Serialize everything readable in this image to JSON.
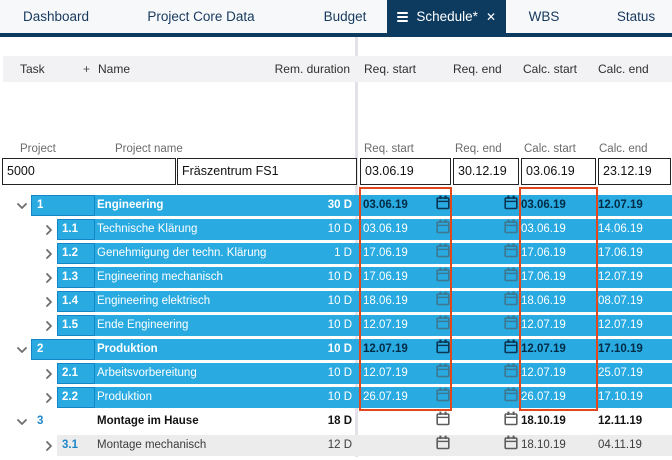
{
  "tabs": [
    {
      "label": "Dashboard",
      "active": false
    },
    {
      "label": "Project Core Data",
      "active": false
    },
    {
      "label": "Budget",
      "active": false
    },
    {
      "label": "Schedule*",
      "active": true
    },
    {
      "label": "WBS",
      "active": false
    },
    {
      "label": "Status",
      "active": false
    }
  ],
  "columns": {
    "task": "Task",
    "add": "+",
    "name": "Name",
    "rem_duration": "Rem. duration",
    "req_start": "Req. start",
    "req_end": "Req. end",
    "calc_start": "Calc. start",
    "calc_end": "Calc. end"
  },
  "project": {
    "label": "Project",
    "name_label": "Project name",
    "req_start_label": "Req. start",
    "req_end_label": "Req. end",
    "calc_start_label": "Calc. start",
    "calc_end_label": "Calc. end",
    "id": "5000",
    "name": "Fräszentrum FS1",
    "req_start": "03.06.19",
    "req_end": "30.12.19",
    "calc_start": "03.06.19",
    "calc_end": "23.12.19"
  },
  "tasks": [
    {
      "id": "1",
      "name": "Engineering",
      "duration": "30 D",
      "req_start": "03.06.19",
      "req_end": "",
      "calc_start": "03.06.19",
      "calc_end": "12.07.19",
      "level": 1,
      "expanded": true,
      "emphasis": true,
      "theme": "cyan"
    },
    {
      "id": "1.1",
      "name": "Technische Klärung",
      "duration": "10 D",
      "req_start": "03.06.19",
      "req_end": "",
      "calc_start": "03.06.19",
      "calc_end": "14.06.19",
      "level": 2,
      "expanded": false,
      "emphasis": false,
      "theme": "cyan"
    },
    {
      "id": "1.2",
      "name": "Genehmigung der techn. Klärung",
      "duration": "1 D",
      "req_start": "17.06.19",
      "req_end": "",
      "calc_start": "17.06.19",
      "calc_end": "17.06.19",
      "level": 2,
      "expanded": false,
      "emphasis": false,
      "theme": "cyan"
    },
    {
      "id": "1.3",
      "name": "Engineering mechanisch",
      "duration": "10 D",
      "req_start": "17.06.19",
      "req_end": "",
      "calc_start": "17.06.19",
      "calc_end": "12.07.19",
      "level": 2,
      "expanded": false,
      "emphasis": false,
      "theme": "cyan"
    },
    {
      "id": "1.4",
      "name": "Engineering elektrisch",
      "duration": "10 D",
      "req_start": "18.06.19",
      "req_end": "",
      "calc_start": "18.06.19",
      "calc_end": "08.07.19",
      "level": 2,
      "expanded": false,
      "emphasis": false,
      "theme": "cyan"
    },
    {
      "id": "1.5",
      "name": "Ende Engineering",
      "duration": "10 D",
      "req_start": "12.07.19",
      "req_end": "",
      "calc_start": "12.07.19",
      "calc_end": "12.07.19",
      "level": 2,
      "expanded": false,
      "emphasis": false,
      "theme": "cyan"
    },
    {
      "id": "2",
      "name": "Produktion",
      "duration": "10 D",
      "req_start": "12.07.19",
      "req_end": "",
      "calc_start": "12.07.19",
      "calc_end": "17.10.19",
      "level": 1,
      "expanded": true,
      "emphasis": true,
      "theme": "cyan"
    },
    {
      "id": "2.1",
      "name": "Arbeitsvorbereitung",
      "duration": "10 D",
      "req_start": "12.07.19",
      "req_end": "",
      "calc_start": "12.07.19",
      "calc_end": "25.07.19",
      "level": 2,
      "expanded": false,
      "emphasis": false,
      "theme": "cyan"
    },
    {
      "id": "2.2",
      "name": "Produktion",
      "duration": "10 D",
      "req_start": "26.07.19",
      "req_end": "",
      "calc_start": "26.07.19",
      "calc_end": "17.10.19",
      "level": 2,
      "expanded": false,
      "emphasis": false,
      "theme": "cyan"
    },
    {
      "id": "3",
      "name": "Montage im Hause",
      "duration": "18 D",
      "req_start": "",
      "req_end": "",
      "calc_start": "18.10.19",
      "calc_end": "12.11.19",
      "level": 1,
      "expanded": true,
      "emphasis": true,
      "theme": "white"
    },
    {
      "id": "3.1",
      "name": "Montage mechanisch",
      "duration": "12 D",
      "req_start": "",
      "req_end": "",
      "calc_start": "18.10.19",
      "calc_end": "04.11.19",
      "level": 2,
      "expanded": false,
      "emphasis": false,
      "theme": "gray"
    }
  ],
  "annotations": [
    {
      "target": "req-start-column",
      "color": "#e2481c"
    },
    {
      "target": "calc-start-column",
      "color": "#e2481c"
    }
  ],
  "colors": {
    "accent_cyan": "#29abe2",
    "navy": "#0d3b5f",
    "annotation_red": "#e2481c",
    "row_alt_gray": "#ececec",
    "cell_border_blue": "#1486c8"
  }
}
